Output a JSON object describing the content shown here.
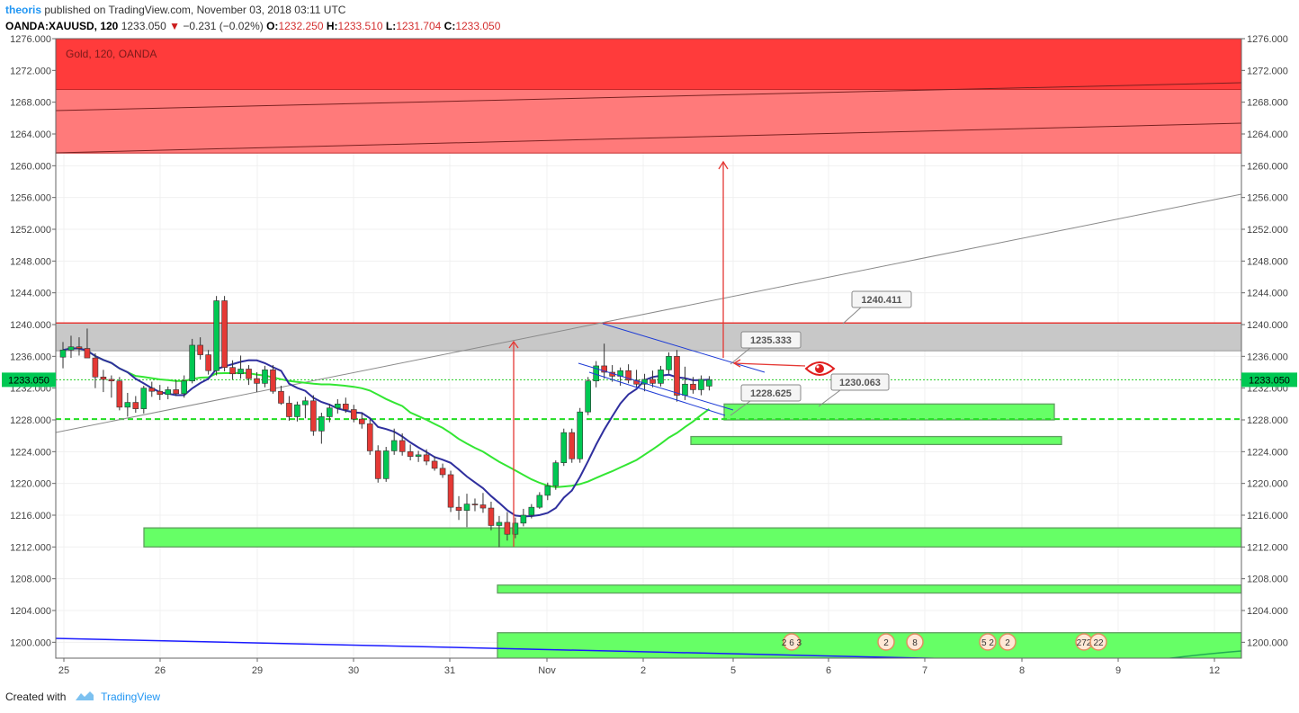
{
  "header": {
    "author": "theoris",
    "published_text": "published on TradingView.com, November 03, 2018 03:11 UTC"
  },
  "quote": {
    "symbol": "OANDA:XAUUSD, 120",
    "last": "1233.050",
    "arrow": "▼",
    "change": "−0.231 (−0.02%)",
    "o_label": "O:",
    "o": "1232.250",
    "h_label": "H:",
    "h": "1233.510",
    "l_label": "L:",
    "l": "1231.704",
    "c_label": "C:",
    "c": "1233.050"
  },
  "footer": {
    "created_with": "Created with",
    "brand": "TradingView"
  },
  "colors": {
    "up": "#00c853",
    "down": "#e53935",
    "resistance_dark": "#ff3b3b",
    "resistance_light": "#ff7a7a",
    "support": "#66ff66",
    "ma_green": "#33e633",
    "ma_navy": "#2f2f9e",
    "channel": "#1e3cd6",
    "annotation_arrow": "#e53935",
    "price_tag": "#00c853"
  },
  "chart_data": {
    "type": "candlestick",
    "symbol": "Gold, 120, OANDA",
    "title": "Gold, 120, OANDA",
    "ylim": [
      1198,
      1276
    ],
    "y_ticks": [
      "1276.000",
      "1272.000",
      "1268.000",
      "1264.000",
      "1260.000",
      "1256.000",
      "1252.000",
      "1248.000",
      "1244.000",
      "1240.000",
      "1236.000",
      "1232.000",
      "1228.000",
      "1224.000",
      "1220.000",
      "1216.000",
      "1212.000",
      "1208.000",
      "1204.000",
      "1200.000"
    ],
    "x_ticks": [
      "25",
      "26",
      "29",
      "30",
      "31",
      "Nov",
      "2",
      "5",
      "6",
      "7",
      "8",
      "9",
      "12"
    ],
    "last_price_label": "1233.050",
    "candles": [
      {
        "o": 1235.9,
        "h": 1237.8,
        "l": 1234.5,
        "c": 1236.8
      },
      {
        "o": 1236.8,
        "h": 1238.6,
        "l": 1235.8,
        "c": 1237.2
      },
      {
        "o": 1237.2,
        "h": 1238.4,
        "l": 1236.1,
        "c": 1237.0
      },
      {
        "o": 1237.0,
        "h": 1239.5,
        "l": 1236.3,
        "c": 1235.8
      },
      {
        "o": 1235.8,
        "h": 1236.4,
        "l": 1232.0,
        "c": 1233.4
      },
      {
        "o": 1233.4,
        "h": 1234.3,
        "l": 1231.5,
        "c": 1233.1
      },
      {
        "o": 1233.1,
        "h": 1233.6,
        "l": 1230.8,
        "c": 1232.9
      },
      {
        "o": 1232.9,
        "h": 1233.4,
        "l": 1229.2,
        "c": 1229.6
      },
      {
        "o": 1229.6,
        "h": 1231.4,
        "l": 1228.4,
        "c": 1230.2
      },
      {
        "o": 1230.2,
        "h": 1231.0,
        "l": 1228.9,
        "c": 1229.4
      },
      {
        "o": 1229.4,
        "h": 1232.3,
        "l": 1228.8,
        "c": 1232.0
      },
      {
        "o": 1232.0,
        "h": 1232.8,
        "l": 1230.9,
        "c": 1231.6
      },
      {
        "o": 1231.6,
        "h": 1232.4,
        "l": 1230.5,
        "c": 1231.2
      },
      {
        "o": 1231.2,
        "h": 1232.2,
        "l": 1230.6,
        "c": 1231.8
      },
      {
        "o": 1231.8,
        "h": 1233.0,
        "l": 1231.0,
        "c": 1231.3
      },
      {
        "o": 1231.3,
        "h": 1233.6,
        "l": 1230.8,
        "c": 1232.9
      },
      {
        "o": 1232.9,
        "h": 1238.2,
        "l": 1232.6,
        "c": 1237.4
      },
      {
        "o": 1237.4,
        "h": 1238.4,
        "l": 1235.6,
        "c": 1236.2
      },
      {
        "o": 1236.2,
        "h": 1236.8,
        "l": 1233.7,
        "c": 1234.2
      },
      {
        "o": 1234.2,
        "h": 1243.6,
        "l": 1233.6,
        "c": 1243.0
      },
      {
        "o": 1243.0,
        "h": 1243.6,
        "l": 1234.1,
        "c": 1234.6
      },
      {
        "o": 1234.6,
        "h": 1235.5,
        "l": 1233.1,
        "c": 1233.8
      },
      {
        "o": 1233.8,
        "h": 1236.1,
        "l": 1233.2,
        "c": 1234.4
      },
      {
        "o": 1234.4,
        "h": 1234.9,
        "l": 1232.4,
        "c": 1233.2
      },
      {
        "o": 1233.2,
        "h": 1234.0,
        "l": 1231.5,
        "c": 1232.6
      },
      {
        "o": 1232.6,
        "h": 1234.8,
        "l": 1232.1,
        "c": 1234.3
      },
      {
        "o": 1234.3,
        "h": 1234.9,
        "l": 1231.3,
        "c": 1231.6
      },
      {
        "o": 1231.6,
        "h": 1232.3,
        "l": 1229.9,
        "c": 1230.1
      },
      {
        "o": 1230.1,
        "h": 1231.0,
        "l": 1227.9,
        "c": 1228.4
      },
      {
        "o": 1228.4,
        "h": 1230.3,
        "l": 1227.8,
        "c": 1229.9
      },
      {
        "o": 1229.9,
        "h": 1230.9,
        "l": 1228.2,
        "c": 1230.4
      },
      {
        "o": 1230.4,
        "h": 1231.1,
        "l": 1226.0,
        "c": 1226.6
      },
      {
        "o": 1226.6,
        "h": 1228.9,
        "l": 1225.0,
        "c": 1228.4
      },
      {
        "o": 1228.4,
        "h": 1230.0,
        "l": 1227.7,
        "c": 1229.5
      },
      {
        "o": 1229.5,
        "h": 1230.6,
        "l": 1228.8,
        "c": 1230.0
      },
      {
        "o": 1230.0,
        "h": 1230.8,
        "l": 1228.9,
        "c": 1229.3
      },
      {
        "o": 1229.3,
        "h": 1229.9,
        "l": 1227.7,
        "c": 1228.1
      },
      {
        "o": 1228.1,
        "h": 1228.9,
        "l": 1226.9,
        "c": 1227.5
      },
      {
        "o": 1227.5,
        "h": 1228.1,
        "l": 1223.6,
        "c": 1224.1
      },
      {
        "o": 1224.1,
        "h": 1224.8,
        "l": 1220.1,
        "c": 1220.6
      },
      {
        "o": 1220.6,
        "h": 1224.6,
        "l": 1220.2,
        "c": 1224.1
      },
      {
        "o": 1224.1,
        "h": 1226.9,
        "l": 1223.6,
        "c": 1225.4
      },
      {
        "o": 1225.4,
        "h": 1226.3,
        "l": 1223.5,
        "c": 1224.0
      },
      {
        "o": 1224.0,
        "h": 1224.9,
        "l": 1222.9,
        "c": 1223.4
      },
      {
        "o": 1223.4,
        "h": 1224.1,
        "l": 1222.7,
        "c": 1223.6
      },
      {
        "o": 1223.6,
        "h": 1224.3,
        "l": 1222.3,
        "c": 1222.8
      },
      {
        "o": 1222.8,
        "h": 1223.4,
        "l": 1221.6,
        "c": 1221.9
      },
      {
        "o": 1221.9,
        "h": 1222.5,
        "l": 1220.7,
        "c": 1221.1
      },
      {
        "o": 1221.1,
        "h": 1221.6,
        "l": 1216.4,
        "c": 1217.0
      },
      {
        "o": 1217.0,
        "h": 1218.4,
        "l": 1215.4,
        "c": 1216.6
      },
      {
        "o": 1216.6,
        "h": 1218.7,
        "l": 1214.5,
        "c": 1217.4
      },
      {
        "o": 1217.4,
        "h": 1218.1,
        "l": 1216.5,
        "c": 1217.3
      },
      {
        "o": 1217.3,
        "h": 1218.8,
        "l": 1216.3,
        "c": 1216.9
      },
      {
        "o": 1216.9,
        "h": 1217.7,
        "l": 1214.1,
        "c": 1214.7
      },
      {
        "o": 1214.7,
        "h": 1215.9,
        "l": 1212.0,
        "c": 1215.1
      },
      {
        "o": 1215.1,
        "h": 1216.4,
        "l": 1212.8,
        "c": 1213.6
      },
      {
        "o": 1213.6,
        "h": 1215.7,
        "l": 1213.1,
        "c": 1215.0
      },
      {
        "o": 1215.0,
        "h": 1216.8,
        "l": 1214.6,
        "c": 1216.0
      },
      {
        "o": 1216.0,
        "h": 1217.4,
        "l": 1215.6,
        "c": 1217.0
      },
      {
        "o": 1217.0,
        "h": 1218.9,
        "l": 1216.8,
        "c": 1218.5
      },
      {
        "o": 1218.5,
        "h": 1220.1,
        "l": 1217.9,
        "c": 1219.7
      },
      {
        "o": 1219.7,
        "h": 1222.9,
        "l": 1219.2,
        "c": 1222.6
      },
      {
        "o": 1222.6,
        "h": 1226.9,
        "l": 1222.2,
        "c": 1226.4
      },
      {
        "o": 1226.4,
        "h": 1226.9,
        "l": 1222.6,
        "c": 1223.1
      },
      {
        "o": 1223.1,
        "h": 1229.5,
        "l": 1222.6,
        "c": 1229.0
      },
      {
        "o": 1229.0,
        "h": 1233.4,
        "l": 1228.6,
        "c": 1232.9
      },
      {
        "o": 1232.9,
        "h": 1235.4,
        "l": 1232.1,
        "c": 1234.8
      },
      {
        "o": 1234.8,
        "h": 1237.6,
        "l": 1233.2,
        "c": 1234.0
      },
      {
        "o": 1234.0,
        "h": 1234.9,
        "l": 1232.8,
        "c": 1233.5
      },
      {
        "o": 1233.5,
        "h": 1234.6,
        "l": 1232.3,
        "c": 1234.2
      },
      {
        "o": 1234.2,
        "h": 1235.0,
        "l": 1232.6,
        "c": 1233.0
      },
      {
        "o": 1233.0,
        "h": 1234.3,
        "l": 1232.1,
        "c": 1232.5
      },
      {
        "o": 1232.5,
        "h": 1233.8,
        "l": 1231.6,
        "c": 1233.1
      },
      {
        "o": 1233.1,
        "h": 1234.2,
        "l": 1232.1,
        "c": 1232.6
      },
      {
        "o": 1232.6,
        "h": 1234.8,
        "l": 1232.2,
        "c": 1234.3
      },
      {
        "o": 1234.3,
        "h": 1236.5,
        "l": 1233.8,
        "c": 1236.0
      },
      {
        "o": 1236.0,
        "h": 1236.8,
        "l": 1230.3,
        "c": 1231.1
      },
      {
        "o": 1231.1,
        "h": 1234.7,
        "l": 1230.5,
        "c": 1232.5
      },
      {
        "o": 1232.5,
        "h": 1233.4,
        "l": 1231.3,
        "c": 1231.8
      },
      {
        "o": 1231.8,
        "h": 1233.6,
        "l": 1231.1,
        "c": 1233.1
      },
      {
        "o": 1232.25,
        "h": 1233.51,
        "l": 1231.704,
        "c": 1233.05
      }
    ],
    "levels": {
      "resistance_zone_dark": [
        1269.6,
        1276
      ],
      "resistance_zone_light": [
        1261.6,
        1269.6
      ],
      "grey_zone": [
        1236.7,
        1240.2
      ],
      "resistance_line": 1240.2,
      "dashed_support": 1228.1,
      "dotted_last": 1233.05,
      "support_zones": [
        {
          "range": [
            1228.0,
            1230.0
          ]
        },
        {
          "range": [
            1224.9,
            1225.9
          ]
        },
        {
          "range": [
            1212.0,
            1214.4
          ]
        },
        {
          "range": [
            1206.2,
            1207.2
          ]
        },
        {
          "range": [
            1197.9,
            1201.2
          ]
        }
      ]
    },
    "labels": [
      "1240.411",
      "1235.333",
      "1228.625",
      "1230.063"
    ],
    "event_markers": [
      "2 6 3",
      "2",
      "8",
      "5 2",
      "2",
      "272",
      "22"
    ]
  }
}
